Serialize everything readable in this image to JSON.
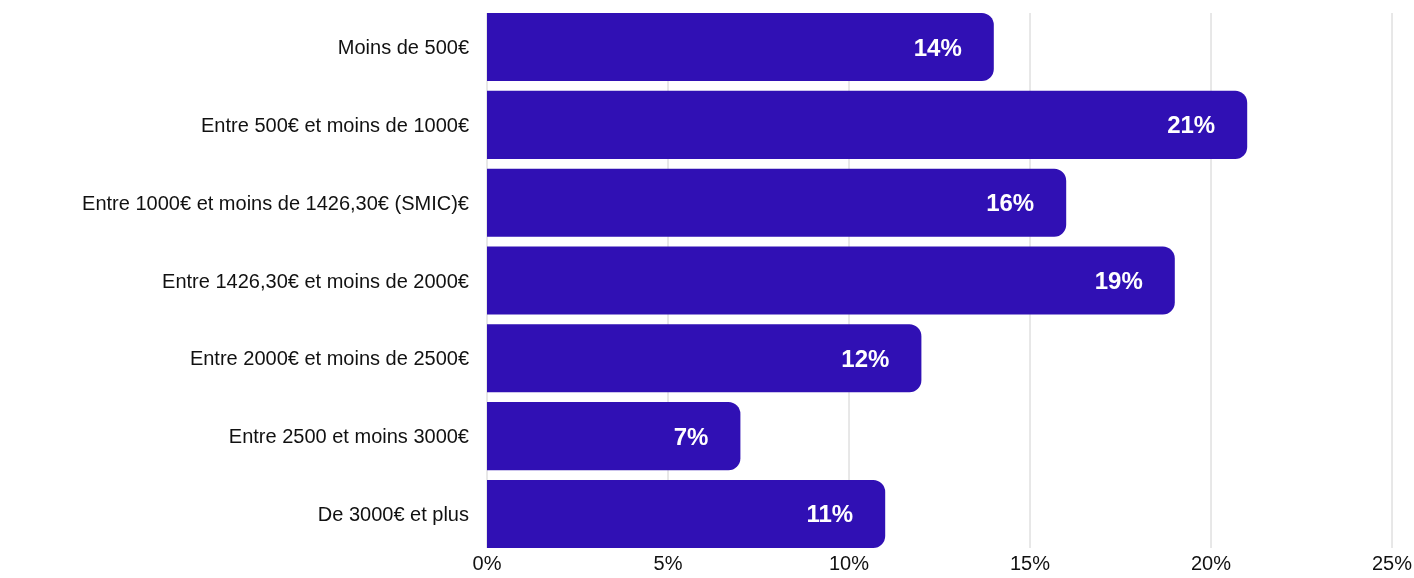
{
  "chart_data": {
    "type": "bar",
    "orientation": "horizontal",
    "categories": [
      "Moins de 500€",
      "Entre 500€ et moins de 1000€",
      "Entre 1000€ et moins de 1426,30€ (SMIC)€",
      "Entre 1426,30€ et moins de 2000€",
      "Entre 2000€ et moins de 2500€",
      "Entre 2500 et moins 3000€",
      "De 3000€ et plus"
    ],
    "values": [
      14,
      21,
      16,
      19,
      12,
      7,
      11
    ],
    "value_labels": [
      "14%",
      "21%",
      "16%",
      "19%",
      "12%",
      "7%",
      "11%"
    ],
    "color": "#3010b4",
    "xlim": [
      0,
      25
    ],
    "xticks": [
      {
        "value": 0,
        "label": "0%"
      },
      {
        "value": 5,
        "label": "5%"
      },
      {
        "value": 10,
        "label": "10%"
      },
      {
        "value": 15,
        "label": "15%"
      },
      {
        "value": 20,
        "label": "20%"
      },
      {
        "value": 25,
        "label": "25%"
      }
    ],
    "grid": "x"
  }
}
